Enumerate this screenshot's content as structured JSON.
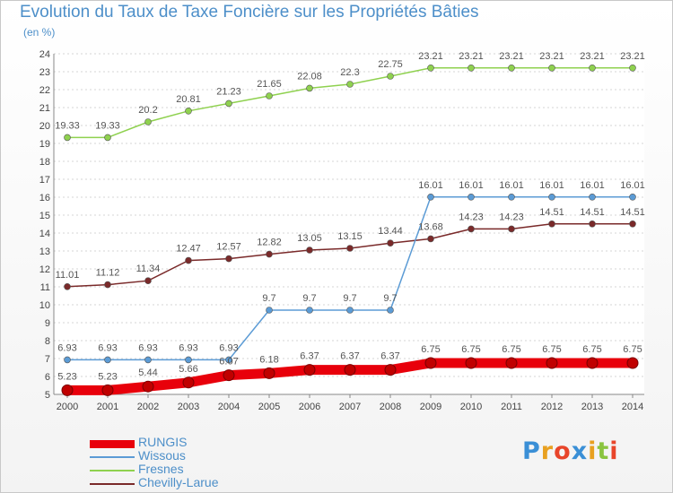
{
  "title": "Evolution du Taux de Taxe Foncière sur les Propriétés Bâties",
  "subtitle": "(en %)",
  "logo": {
    "text": "Proxiti",
    "colors": [
      "#3a8fd6",
      "#e8a020",
      "#e8452a",
      "#3a8fd6",
      "#e8a020",
      "#8ac43f",
      "#e8452a"
    ]
  },
  "chart_data": {
    "type": "line",
    "x": [
      "2000",
      "2001",
      "2002",
      "2003",
      "2004",
      "2005",
      "2006",
      "2007",
      "2008",
      "2009",
      "2010",
      "2011",
      "2012",
      "2013",
      "2014"
    ],
    "ylim": [
      5,
      24
    ],
    "yticks": [
      5,
      6,
      7,
      8,
      9,
      10,
      11,
      12,
      13,
      14,
      15,
      16,
      17,
      18,
      19,
      20,
      21,
      22,
      23,
      24
    ],
    "grid": "horizontal",
    "legend_position": "bottom-left",
    "series": [
      {
        "name": "RUNGIS",
        "color": "#e8000b",
        "values": [
          5.23,
          5.23,
          5.44,
          5.66,
          6.07,
          6.18,
          6.37,
          6.37,
          6.37,
          6.75,
          6.75,
          6.75,
          6.75,
          6.75,
          6.75
        ],
        "labels": [
          "5.23",
          "5.23",
          "5.44",
          "5.66",
          "6.07",
          "6.18",
          "6.37",
          "6.37",
          "6.37",
          "6.75",
          "6.75",
          "6.75",
          "6.75",
          "6.75",
          "6.75"
        ]
      },
      {
        "name": "Wissous",
        "color": "#5b9bd5",
        "values": [
          6.93,
          6.93,
          6.93,
          6.93,
          6.93,
          9.7,
          9.7,
          9.7,
          9.7,
          16.01,
          16.01,
          16.01,
          16.01,
          16.01,
          16.01
        ],
        "labels": [
          "6.93",
          "6.93",
          "6.93",
          "6.93",
          "6.93",
          "9.7",
          "9.7",
          "9.7",
          "9.7",
          "16.01",
          "16.01",
          "16.01",
          "16.01",
          "16.01",
          "16.01"
        ]
      },
      {
        "name": "Fresnes",
        "color": "#8fd14f",
        "values": [
          19.33,
          19.33,
          20.2,
          20.81,
          21.23,
          21.65,
          22.08,
          22.3,
          22.75,
          23.21,
          23.21,
          23.21,
          23.21,
          23.21,
          23.21
        ],
        "labels": [
          "19.33",
          "19.33",
          "20.2",
          "20.81",
          "21.23",
          "21.65",
          "22.08",
          "22.3",
          "22.75",
          "23.21",
          "23.21",
          "23.21",
          "23.21",
          "23.21",
          "23.21"
        ]
      },
      {
        "name": "Chevilly-Larue",
        "color": "#7a2a2a",
        "values": [
          11.01,
          11.12,
          11.34,
          12.47,
          12.57,
          12.82,
          13.05,
          13.15,
          13.44,
          13.68,
          14.23,
          14.23,
          14.51,
          14.51,
          14.51
        ],
        "labels": [
          "11.01",
          "11.12",
          "11.34",
          "12.47",
          "12.57",
          "12.82",
          "13.05",
          "13.15",
          "13.44",
          "13.68",
          "14.23",
          "14.23",
          "14.51",
          "14.51",
          "14.51"
        ]
      }
    ]
  }
}
